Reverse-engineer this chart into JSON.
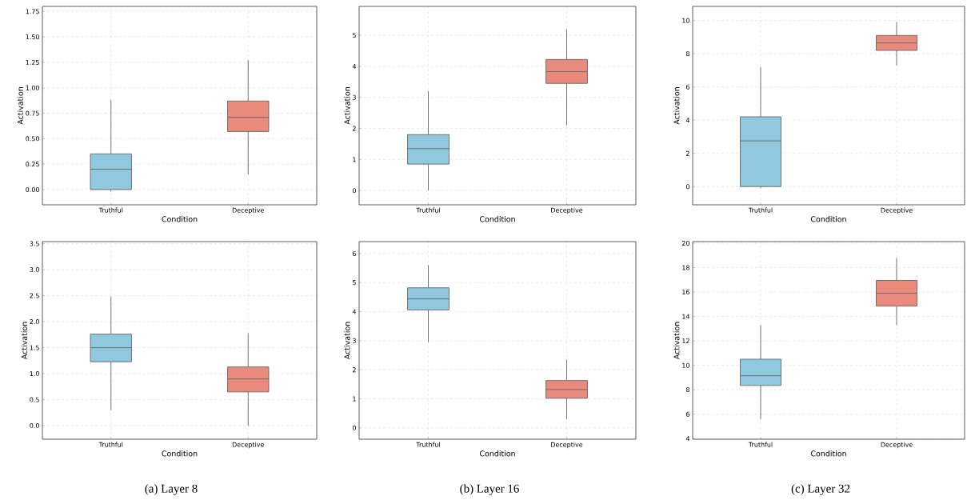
{
  "chart_data": [
    {
      "type": "box",
      "xlabel": "Condition",
      "ylabel": "Activation",
      "categories": [
        "Truthful",
        "Deceptive"
      ],
      "colors": [
        "#90c8e0",
        "#e88b7d"
      ],
      "grid": true,
      "ylim": [
        -0.15,
        1.8
      ],
      "yticks": [
        {
          "value": 0,
          "label": "0.00"
        },
        {
          "value": 0.25,
          "label": "0.25"
        },
        {
          "value": 0.5,
          "label": "0.50"
        },
        {
          "value": 0.75,
          "label": "0.75"
        },
        {
          "value": 1,
          "label": "1.00"
        },
        {
          "value": 1.25,
          "label": "1.25"
        },
        {
          "value": 1.5,
          "label": "1.50"
        },
        {
          "value": 1.75,
          "label": "1.75"
        }
      ],
      "boxes": [
        {
          "low": -0.02,
          "q1": 0.0,
          "median": 0.2,
          "q3": 0.35,
          "high": 0.88
        },
        {
          "low": 0.15,
          "q1": 0.57,
          "median": 0.71,
          "q3": 0.87,
          "high": 1.27
        }
      ]
    },
    {
      "type": "box",
      "xlabel": "Condition",
      "ylabel": "Activation",
      "categories": [
        "Truthful",
        "Deceptive"
      ],
      "colors": [
        "#90c8e0",
        "#e88b7d"
      ],
      "grid": true,
      "ylim": [
        -0.46,
        5.93
      ],
      "yticks": [
        0,
        1,
        2,
        3,
        4,
        5
      ],
      "boxes": [
        {
          "low": 0.0,
          "q1": 0.85,
          "median": 1.35,
          "q3": 1.8,
          "high": 3.2
        },
        {
          "low": 2.1,
          "q1": 3.45,
          "median": 3.83,
          "q3": 4.22,
          "high": 5.2
        }
      ]
    },
    {
      "type": "box",
      "xlabel": "Condition",
      "ylabel": "Activation",
      "categories": [
        "Truthful",
        "Deceptive"
      ],
      "colors": [
        "#90c8e0",
        "#e88b7d"
      ],
      "grid": true,
      "ylim": [
        -1.1,
        10.85
      ],
      "yticks": [
        0,
        2,
        4,
        6,
        8,
        10
      ],
      "boxes": [
        {
          "low": -0.1,
          "q1": 0.0,
          "median": 2.75,
          "q3": 4.2,
          "high": 7.2
        },
        {
          "low": 7.3,
          "q1": 8.2,
          "median": 8.65,
          "q3": 9.1,
          "high": 9.9
        }
      ]
    },
    {
      "type": "box",
      "xlabel": "Condition",
      "ylabel": "Activation",
      "categories": [
        "Truthful",
        "Deceptive"
      ],
      "colors": [
        "#90c8e0",
        "#e88b7d"
      ],
      "grid": true,
      "ylim": [
        -0.26,
        3.54
      ],
      "yticks": [
        {
          "value": 0,
          "label": "0.0"
        },
        {
          "value": 0.5,
          "label": "0.5"
        },
        {
          "value": 1,
          "label": "1.0"
        },
        {
          "value": 1.5,
          "label": "1.5"
        },
        {
          "value": 2,
          "label": "2.0"
        },
        {
          "value": 2.5,
          "label": "2.5"
        },
        {
          "value": 3,
          "label": "3.0"
        },
        {
          "value": 3.5,
          "label": "3.5"
        }
      ],
      "boxes": [
        {
          "low": 0.3,
          "q1": 1.23,
          "median": 1.5,
          "q3": 1.76,
          "high": 2.48
        },
        {
          "low": 0.0,
          "q1": 0.65,
          "median": 0.9,
          "q3": 1.13,
          "high": 1.78
        }
      ],
      "annotations": [
        "(a) Layer 8"
      ]
    },
    {
      "type": "box",
      "xlabel": "Condition",
      "ylabel": "Activation",
      "categories": [
        "Truthful",
        "Deceptive"
      ],
      "colors": [
        "#90c8e0",
        "#e88b7d"
      ],
      "grid": true,
      "ylim": [
        -0.39,
        6.41
      ],
      "yticks": [
        0,
        1,
        2,
        3,
        4,
        5,
        6
      ],
      "boxes": [
        {
          "low": 2.95,
          "q1": 4.06,
          "median": 4.44,
          "q3": 4.82,
          "high": 5.6
        },
        {
          "low": 0.3,
          "q1": 1.02,
          "median": 1.32,
          "q3": 1.63,
          "high": 2.35
        }
      ],
      "annotations": [
        "(b) Layer 16"
      ]
    },
    {
      "type": "box",
      "xlabel": "Condition",
      "ylabel": "Activation",
      "categories": [
        "Truthful",
        "Deceptive"
      ],
      "colors": [
        "#90c8e0",
        "#e88b7d"
      ],
      "grid": true,
      "ylim": [
        3.95,
        20.13
      ],
      "yticks": [
        4,
        6,
        8,
        10,
        12,
        14,
        16,
        18,
        20
      ],
      "boxes": [
        {
          "low": 5.6,
          "q1": 8.35,
          "median": 9.15,
          "q3": 10.5,
          "high": 13.3
        },
        {
          "low": 13.3,
          "q1": 14.85,
          "median": 15.9,
          "q3": 16.95,
          "high": 18.8
        }
      ],
      "annotations": [
        "(c) Layer 32"
      ]
    }
  ]
}
